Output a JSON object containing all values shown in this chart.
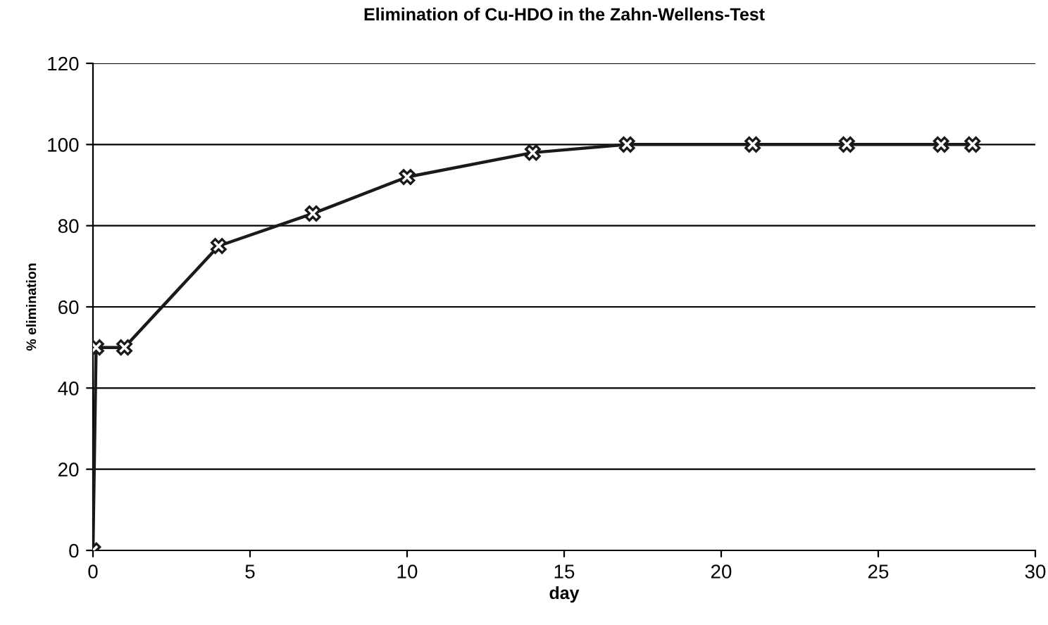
{
  "chart_data": {
    "type": "line",
    "title": "Elimination of Cu-HDO in the Zahn-Wellens-Test",
    "xlabel": "day",
    "ylabel": "% elimination",
    "x": [
      0,
      0.1,
      1,
      4,
      7,
      10,
      14,
      17,
      21,
      24,
      27,
      28
    ],
    "series": [
      {
        "color": "#1a1a1a",
        "values": [
          0,
          50,
          50,
          75,
          83,
          92,
          98,
          100,
          100,
          100,
          100,
          100
        ]
      }
    ],
    "xlim": [
      0,
      30
    ],
    "xticks": [
      0,
      5,
      10,
      15,
      20,
      25,
      30
    ],
    "ylim": [
      0,
      120
    ],
    "yticks": [
      0,
      20,
      40,
      60,
      80,
      100,
      120
    ],
    "grid": "y",
    "marker": "cross",
    "line_style": "solid"
  }
}
